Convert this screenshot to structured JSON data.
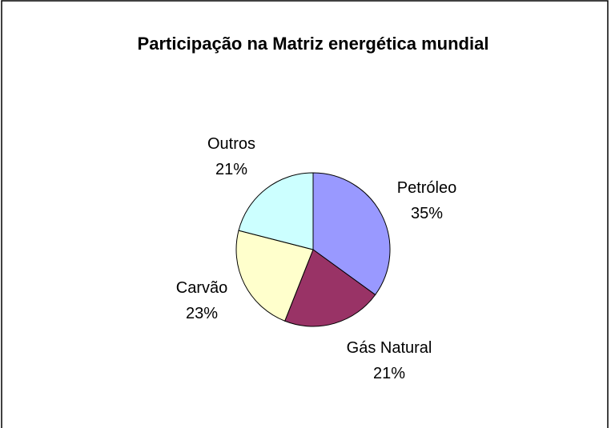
{
  "chart_data": {
    "type": "pie",
    "title": "Participação na Matriz energética mundial",
    "categories": [
      "Petróleo",
      "Gás Natural",
      "Carvão",
      "Outros"
    ],
    "values": [
      35,
      21,
      23,
      21
    ],
    "value_labels": [
      "35%",
      "21%",
      "23%",
      "21%"
    ],
    "colors": [
      "#9999ff",
      "#993366",
      "#ffffcc",
      "#ccffff"
    ]
  }
}
